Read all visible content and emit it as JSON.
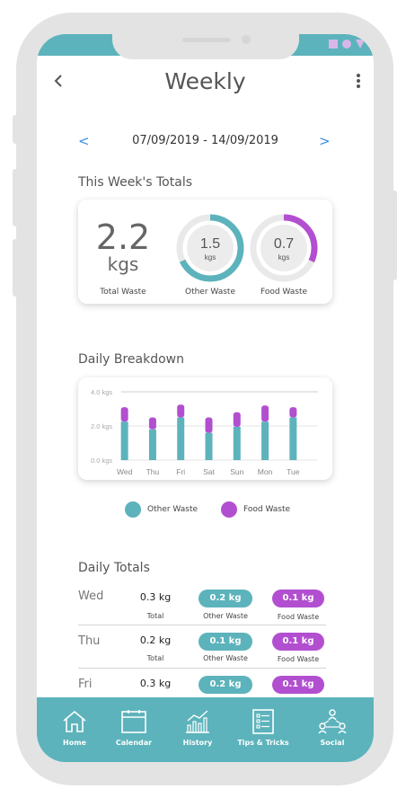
{
  "header": {
    "title": "Weekly"
  },
  "date_range": "07/09/2019 - 14/09/2019",
  "prev_label": "<",
  "next_label": ">",
  "week_totals": {
    "section_title": "This Week's Totals",
    "total": {
      "value": "2.2",
      "unit": "kgs",
      "label": "Total Waste"
    },
    "other": {
      "value": "1.5",
      "unit": "kgs",
      "label": "Other Waste",
      "fraction": 0.68
    },
    "food": {
      "value": "0.7",
      "unit": "kgs",
      "label": "Food Waste",
      "fraction": 0.32
    }
  },
  "breakdown": {
    "section_title": "Daily Breakdown",
    "chart_data": {
      "type": "bar",
      "stacked": true,
      "categories": [
        "Wed",
        "Thu",
        "Fri",
        "Sat",
        "Sun",
        "Mon",
        "Tue"
      ],
      "series": [
        {
          "name": "Other Waste",
          "values": [
            2.25,
            1.8,
            2.5,
            1.6,
            1.95,
            2.25,
            2.5
          ]
        },
        {
          "name": "Food Waste",
          "values": [
            0.85,
            0.7,
            0.75,
            0.9,
            0.85,
            0.95,
            0.6
          ]
        }
      ],
      "y_ticks": [
        "4.0 kgs",
        "2.0 kgs",
        "0.0 kgs"
      ],
      "ylim": [
        0,
        4
      ],
      "legend": [
        {
          "label": "Other Waste",
          "color": "#5cb3bb"
        },
        {
          "label": "Food Waste",
          "color": "#b24fd0"
        }
      ]
    }
  },
  "daily_totals": {
    "section_title": "Daily Totals",
    "rows": [
      {
        "day": "Wed",
        "total": "0.3 kg",
        "other": "0.2 kg",
        "food": "0.1 kg",
        "total_label": "Total",
        "other_label": "Other Waste",
        "food_label": "Food Waste"
      },
      {
        "day": "Thu",
        "total": "0.2 kg",
        "other": "0.1 kg",
        "food": "0.1 kg",
        "total_label": "Total",
        "other_label": "Other Waste",
        "food_label": "Food Waste"
      },
      {
        "day": "Fri",
        "total": "0.3 kg",
        "other": "0.2 kg",
        "food": "0.1 kg"
      }
    ]
  },
  "tabs": [
    {
      "label": "Home",
      "icon": "home-icon"
    },
    {
      "label": "Calendar",
      "icon": "calendar-icon"
    },
    {
      "label": "History",
      "icon": "history-chart-icon"
    },
    {
      "label": "Tips & Tricks",
      "icon": "checklist-icon"
    },
    {
      "label": "Social",
      "icon": "social-network-icon"
    }
  ],
  "colors": {
    "teal": "#5cb3bb",
    "purple": "#b24fd0"
  }
}
